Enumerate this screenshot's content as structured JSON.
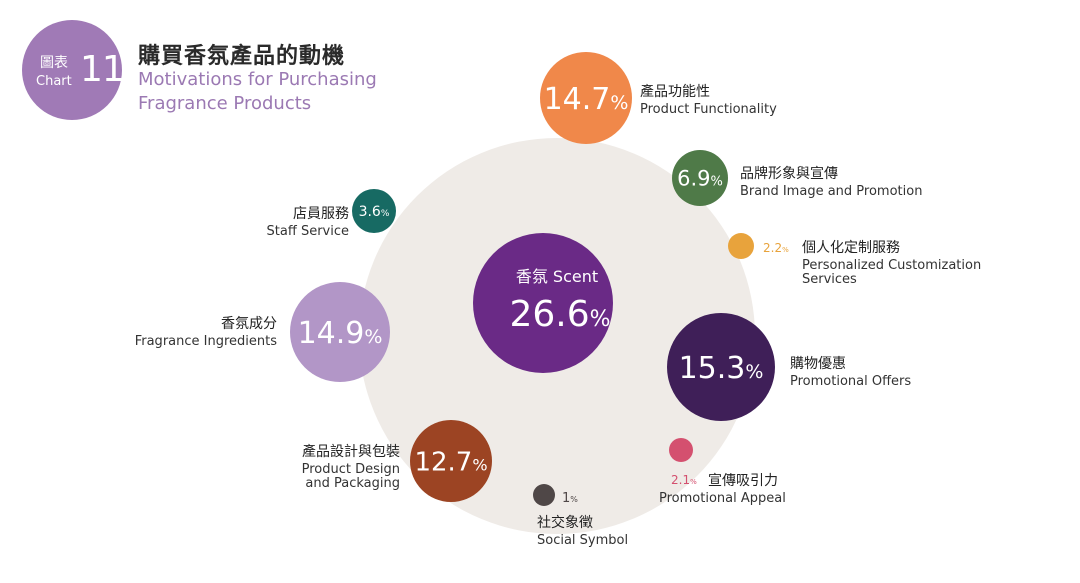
{
  "header": {
    "badge_zh": "圖表",
    "badge_en": "Chart",
    "badge_number": "11",
    "title_zh": "購買香氛產品的動機",
    "title_en": "Motivations for Purchasing Fragrance Products"
  },
  "chart_data": {
    "type": "bubble",
    "unit": "%",
    "background_circle_color": "#efebe7",
    "center": {
      "label_zh": "香氛 Scent",
      "value": "26.6",
      "color": "#6a2a86"
    },
    "items": [
      {
        "label_zh": "產品功能性",
        "label_en": "Product Functionality",
        "value": "14.7",
        "color": "#f0884a"
      },
      {
        "label_zh": "品牌形象與宣傳",
        "label_en": "Brand Image and Promotion",
        "value": "6.9",
        "color": "#4f7a48"
      },
      {
        "label_zh": "個人化定制服務",
        "label_en": "Personalized Customization Services",
        "value": "2.2",
        "color": "#e8a33c"
      },
      {
        "label_zh": "購物優惠",
        "label_en": "Promotional Offers",
        "value": "15.3",
        "color": "#3f1f58"
      },
      {
        "label_zh": "宣傳吸引力",
        "label_en": "Promotional Appeal",
        "value": "2.1",
        "color": "#d4506f"
      },
      {
        "label_zh": "社交象徵",
        "label_en": "Social Symbol",
        "value": "1",
        "color": "#4f4747"
      },
      {
        "label_zh": "產品設計與包裝",
        "label_en": "Product Design and Packaging",
        "value": "12.7",
        "color": "#9c4423"
      },
      {
        "label_zh": "香氛成分",
        "label_en": "Fragrance Ingredients",
        "value": "14.9",
        "color": "#b296c7"
      },
      {
        "label_zh": "店員服務",
        "label_en": "Staff Service",
        "value": "3.6",
        "color": "#176a63"
      }
    ]
  }
}
